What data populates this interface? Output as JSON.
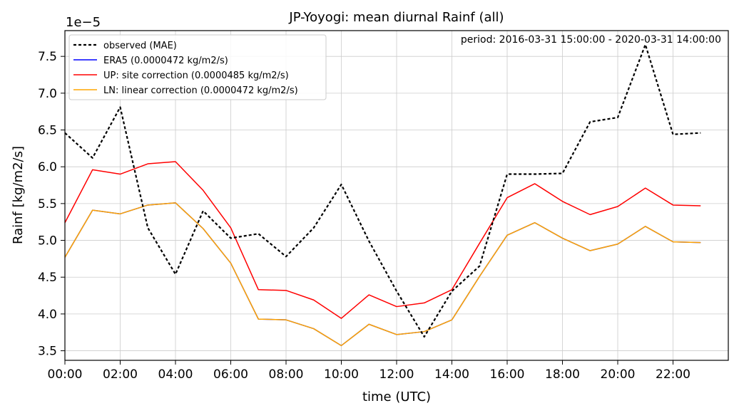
{
  "chart_data": {
    "type": "line",
    "title": "JP-Yoyogi: mean diurnal Rainf (all)",
    "annotation": "period: 2016-03-31 15:00:00 - 2020-03-31 14:00:00",
    "xlabel": "time (UTC)",
    "ylabel": "Rainf [kg/m2/s]",
    "y_exponent": "1e−5",
    "xlim": [
      0,
      24
    ],
    "ylim": [
      3.37,
      7.85
    ],
    "grid": true,
    "legend_position": "top-left",
    "x": [
      0,
      1,
      2,
      3,
      4,
      5,
      6,
      7,
      8,
      9,
      10,
      11,
      12,
      13,
      14,
      15,
      16,
      17,
      18,
      19,
      20,
      21,
      22,
      23
    ],
    "x_ticks": [
      {
        "value": 0,
        "label": "00:00"
      },
      {
        "value": 2,
        "label": "02:00"
      },
      {
        "value": 4,
        "label": "04:00"
      },
      {
        "value": 6,
        "label": "06:00"
      },
      {
        "value": 8,
        "label": "08:00"
      },
      {
        "value": 10,
        "label": "10:00"
      },
      {
        "value": 12,
        "label": "12:00"
      },
      {
        "value": 14,
        "label": "14:00"
      },
      {
        "value": 16,
        "label": "16:00"
      },
      {
        "value": 18,
        "label": "18:00"
      },
      {
        "value": 20,
        "label": "20:00"
      },
      {
        "value": 22,
        "label": "22:00"
      }
    ],
    "y_ticks": [
      {
        "value": 3.5,
        "label": "3.5"
      },
      {
        "value": 4.0,
        "label": "4.0"
      },
      {
        "value": 4.5,
        "label": "4.5"
      },
      {
        "value": 5.0,
        "label": "5.0"
      },
      {
        "value": 5.5,
        "label": "5.5"
      },
      {
        "value": 6.0,
        "label": "6.0"
      },
      {
        "value": 6.5,
        "label": "6.5"
      },
      {
        "value": 7.0,
        "label": "7.0"
      },
      {
        "value": 7.5,
        "label": "7.5"
      }
    ],
    "series": [
      {
        "name": "observed (MAE)",
        "color": "#000000",
        "style": "dotted",
        "values": [
          6.46,
          6.12,
          6.81,
          5.17,
          4.54,
          5.4,
          5.03,
          5.09,
          4.78,
          5.17,
          5.76,
          4.99,
          4.31,
          3.69,
          4.31,
          4.65,
          5.9,
          5.9,
          5.91,
          6.61,
          6.67,
          7.66,
          6.44,
          6.46
        ]
      },
      {
        "name": "ERA5 (0.0000472 kg/m2/s)",
        "color": "#0000ff",
        "style": "solid",
        "values": [
          4.77,
          5.41,
          5.36,
          5.48,
          5.51,
          5.16,
          4.69,
          3.93,
          3.92,
          3.8,
          3.57,
          3.86,
          3.72,
          3.76,
          3.92,
          4.51,
          5.07,
          5.24,
          5.03,
          4.86,
          4.95,
          5.19,
          4.98,
          4.97
        ]
      },
      {
        "name": "UP: site correction (0.0000485 kg/m2/s)",
        "color": "#ff0000",
        "style": "solid",
        "values": [
          5.24,
          5.96,
          5.9,
          6.04,
          6.07,
          5.68,
          5.17,
          4.33,
          4.32,
          4.19,
          3.94,
          4.26,
          4.1,
          4.15,
          4.33,
          4.96,
          5.58,
          5.77,
          5.53,
          5.35,
          5.46,
          5.71,
          5.48,
          5.47
        ]
      },
      {
        "name": "LN: linear correction (0.0000472 kg/m2/s)",
        "color": "#ffa500",
        "style": "solid",
        "values": [
          4.77,
          5.41,
          5.36,
          5.48,
          5.51,
          5.16,
          4.69,
          3.93,
          3.92,
          3.8,
          3.57,
          3.86,
          3.72,
          3.76,
          3.92,
          4.51,
          5.07,
          5.24,
          5.03,
          4.86,
          4.95,
          5.19,
          4.98,
          4.97
        ]
      }
    ]
  }
}
